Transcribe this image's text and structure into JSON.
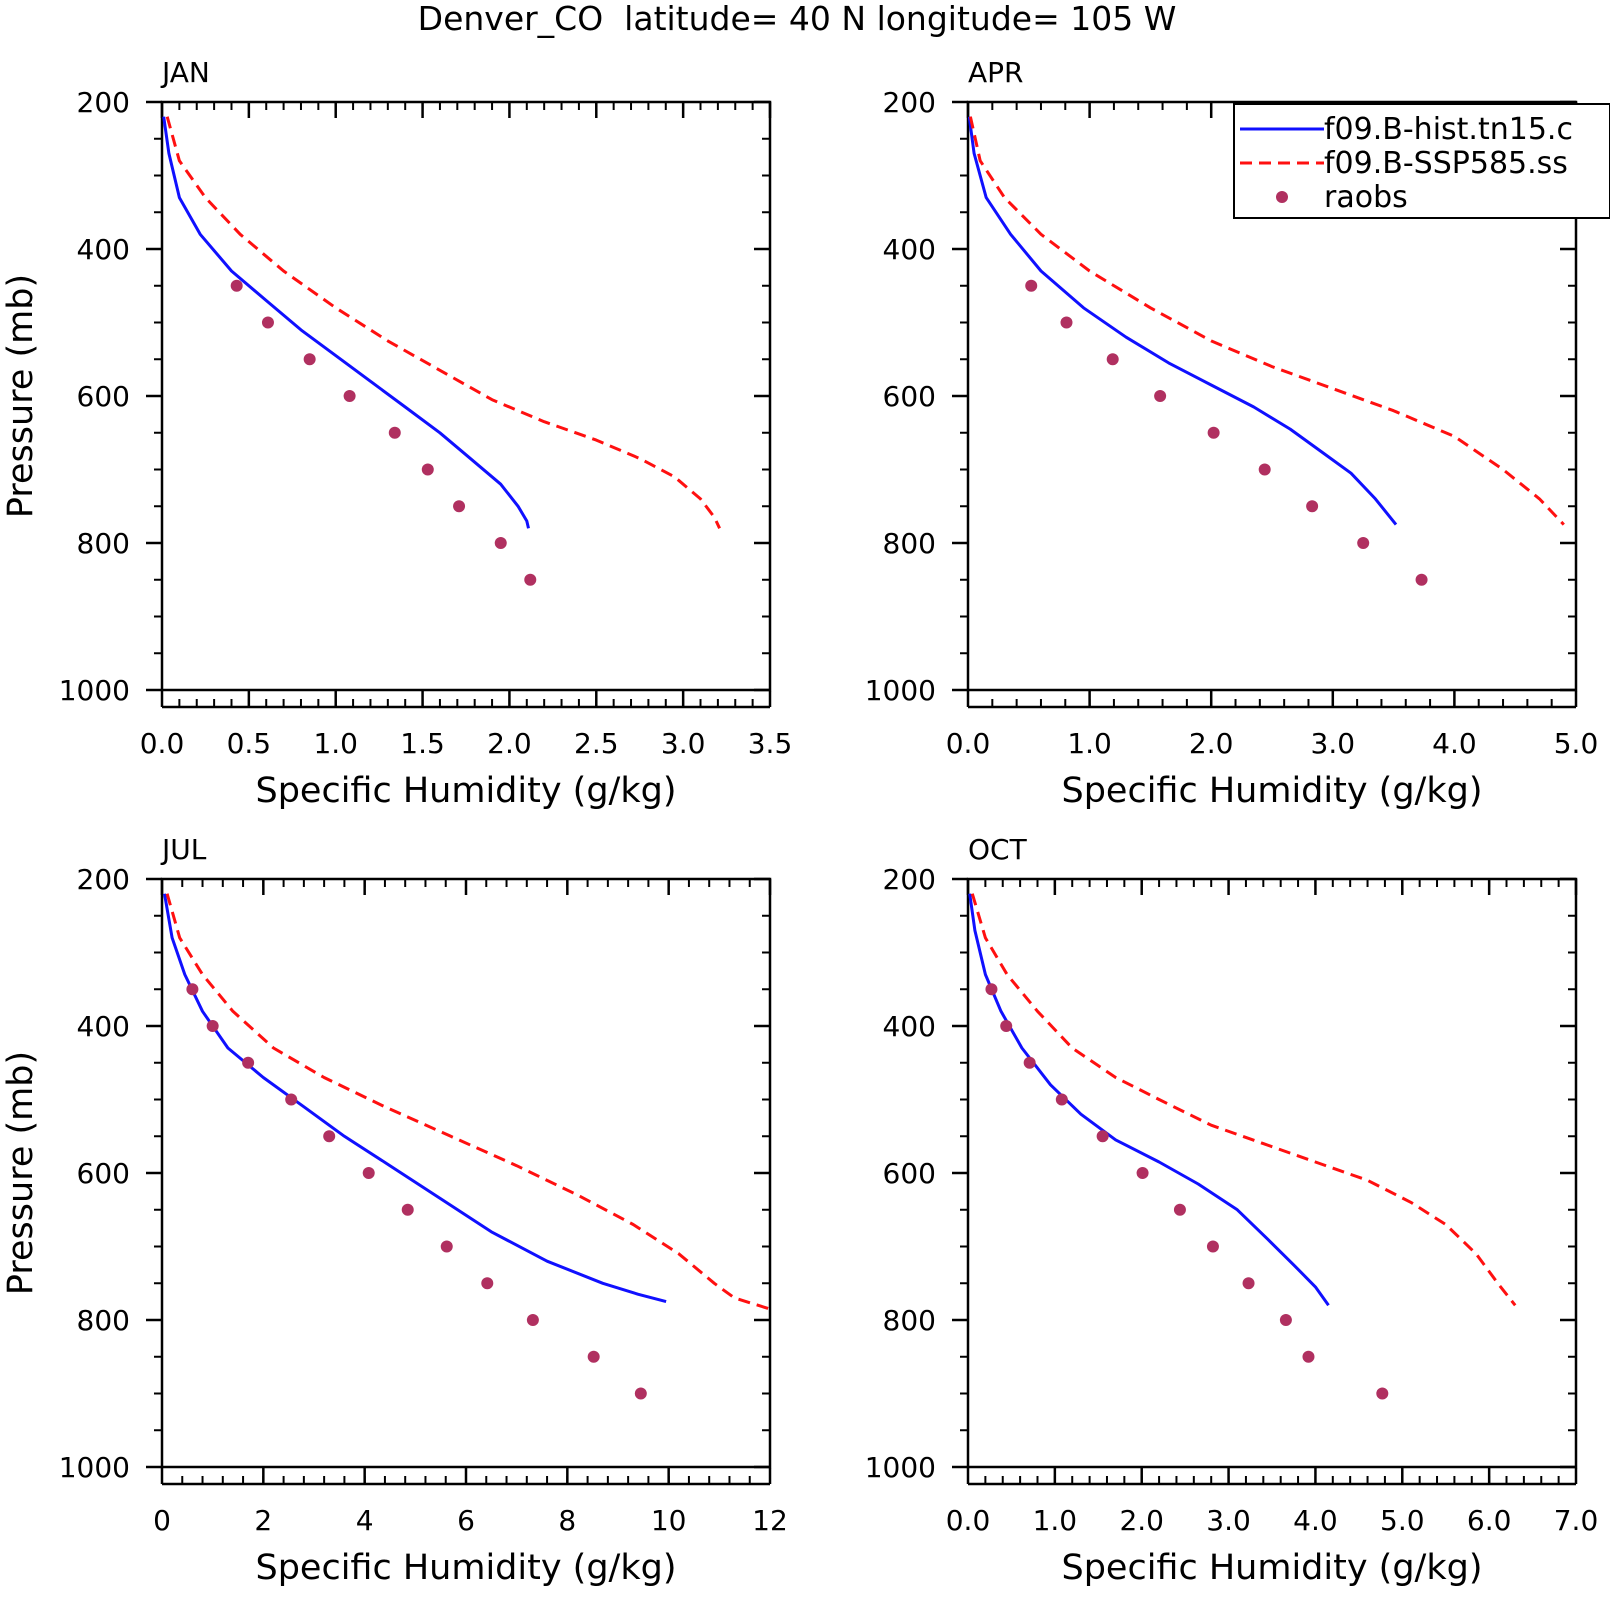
{
  "figure_title": "Denver_CO  latitude= 40 N longitude= 105 W",
  "legend": {
    "entries": [
      {
        "label": "f09.B-hist.tn15.c",
        "color": "#1010ff",
        "style": "solid"
      },
      {
        "label": "f09.B-SSP585.ss",
        "color": "#ff1010",
        "style": "dashed"
      },
      {
        "label": "raobs",
        "color": "#b03060",
        "style": "dot"
      }
    ]
  },
  "chart_data": [
    {
      "type": "line",
      "title": "JAN",
      "xlabel": "Specific Humidity (g/kg)",
      "ylabel": "Pressure (mb)",
      "xlim": [
        0,
        3.5
      ],
      "ylim": [
        200,
        1000
      ],
      "y_inverted": true,
      "xticks": [
        0,
        0.5,
        1,
        1.5,
        2,
        2.5,
        3,
        3.5
      ],
      "xtick_labels": [
        "0.0",
        "0.5",
        "1.0",
        "1.5",
        "2.0",
        "2.5",
        "3.0",
        "3.5"
      ],
      "xminor": 0.1,
      "yticks": [
        200,
        400,
        600,
        800,
        1000
      ],
      "yminor": 50,
      "series": [
        {
          "name": "f09.B-hist.tn15.c",
          "x": [
            0.01,
            0.04,
            0.1,
            0.22,
            0.4,
            0.6,
            0.8,
            1.0,
            1.2,
            1.4,
            1.6,
            1.75,
            1.95,
            2.05,
            2.1,
            2.11
          ],
          "y": [
            220,
            270,
            330,
            380,
            430,
            470,
            510,
            545,
            580,
            615,
            650,
            680,
            720,
            750,
            770,
            780
          ]
        },
        {
          "name": "f09.B-SSP585.ss",
          "x": [
            0.03,
            0.1,
            0.25,
            0.45,
            0.7,
            1.0,
            1.3,
            1.6,
            1.9,
            2.2,
            2.5,
            2.75,
            2.95,
            3.1,
            3.18,
            3.21
          ],
          "y": [
            220,
            280,
            330,
            380,
            430,
            480,
            525,
            565,
            605,
            635,
            660,
            685,
            710,
            740,
            765,
            780
          ]
        },
        {
          "name": "raobs",
          "x": [
            0.43,
            0.61,
            0.85,
            1.08,
            1.34,
            1.53,
            1.71,
            1.95,
            2.12
          ],
          "y": [
            450,
            500,
            550,
            600,
            650,
            700,
            750,
            800,
            850
          ]
        }
      ]
    },
    {
      "type": "line",
      "title": "APR",
      "xlabel": "Specific Humidity (g/kg)",
      "ylabel": "",
      "xlim": [
        0,
        5
      ],
      "ylim": [
        200,
        1000
      ],
      "y_inverted": true,
      "xticks": [
        0,
        1,
        2,
        3,
        4,
        5
      ],
      "xtick_labels": [
        "0.0",
        "1.0",
        "2.0",
        "3.0",
        "4.0",
        "5.0"
      ],
      "xminor": 0.2,
      "yticks": [
        200,
        400,
        600,
        800,
        1000
      ],
      "yminor": 50,
      "series": [
        {
          "name": "f09.B-hist.tn15.c",
          "x": [
            0.01,
            0.05,
            0.15,
            0.35,
            0.6,
            0.95,
            1.3,
            1.65,
            2.0,
            2.35,
            2.65,
            2.9,
            3.15,
            3.35,
            3.52
          ],
          "y": [
            220,
            270,
            330,
            380,
            430,
            480,
            520,
            555,
            585,
            615,
            645,
            675,
            705,
            740,
            775
          ]
        },
        {
          "name": "f09.B-SSP585.ss",
          "x": [
            0.02,
            0.1,
            0.3,
            0.6,
            1.0,
            1.5,
            2.0,
            2.5,
            3.0,
            3.5,
            4.0,
            4.4,
            4.7,
            4.9
          ],
          "y": [
            220,
            280,
            330,
            380,
            430,
            480,
            525,
            560,
            590,
            620,
            655,
            700,
            740,
            775
          ]
        },
        {
          "name": "raobs",
          "x": [
            0.52,
            0.81,
            1.19,
            1.58,
            2.02,
            2.44,
            2.83,
            3.25,
            3.73
          ],
          "y": [
            450,
            500,
            550,
            600,
            650,
            700,
            750,
            800,
            850
          ]
        }
      ]
    },
    {
      "type": "line",
      "title": "JUL",
      "xlabel": "Specific Humidity (g/kg)",
      "ylabel": "Pressure (mb)",
      "xlim": [
        0,
        12
      ],
      "ylim": [
        200,
        1000
      ],
      "y_inverted": true,
      "xticks": [
        0,
        2,
        4,
        6,
        8,
        10,
        12
      ],
      "xtick_labels": [
        "0",
        "2",
        "4",
        "6",
        "8",
        "10",
        "12"
      ],
      "xminor": 0.4,
      "yticks": [
        200,
        400,
        600,
        800,
        1000
      ],
      "yminor": 50,
      "series": [
        {
          "name": "f09.B-hist.tn15.c",
          "x": [
            0.05,
            0.2,
            0.45,
            0.8,
            1.3,
            2.0,
            2.8,
            3.6,
            4.5,
            5.5,
            6.5,
            7.6,
            8.7,
            9.4,
            9.95
          ],
          "y": [
            220,
            280,
            330,
            380,
            430,
            470,
            510,
            550,
            590,
            635,
            680,
            720,
            750,
            765,
            775
          ]
        },
        {
          "name": "f09.B-SSP585.ss",
          "x": [
            0.1,
            0.35,
            0.8,
            1.4,
            2.2,
            3.2,
            4.4,
            5.7,
            7.0,
            8.2,
            9.3,
            10.2,
            10.9,
            11.3,
            12.0
          ],
          "y": [
            220,
            280,
            330,
            380,
            430,
            470,
            510,
            550,
            590,
            630,
            670,
            710,
            750,
            770,
            785
          ]
        },
        {
          "name": "raobs",
          "x": [
            0.6,
            1.0,
            1.7,
            2.55,
            3.3,
            4.08,
            4.85,
            5.62,
            6.42,
            7.32,
            8.52,
            9.45
          ],
          "y": [
            350,
            400,
            450,
            500,
            550,
            600,
            650,
            700,
            750,
            800,
            850,
            900
          ]
        }
      ]
    },
    {
      "type": "line",
      "title": "OCT",
      "xlabel": "Specific Humidity (g/kg)",
      "ylabel": "",
      "xlim": [
        0,
        7
      ],
      "ylim": [
        200,
        1000
      ],
      "y_inverted": true,
      "xticks": [
        0,
        1,
        2,
        3,
        4,
        5,
        6,
        7
      ],
      "xtick_labels": [
        "0.0",
        "1.0",
        "2.0",
        "3.0",
        "4.0",
        "5.0",
        "6.0",
        "7.0"
      ],
      "xminor": 0.2,
      "yticks": [
        200,
        400,
        600,
        800,
        1000
      ],
      "yminor": 50,
      "series": [
        {
          "name": "f09.B-hist.tn15.c",
          "x": [
            0.02,
            0.08,
            0.2,
            0.38,
            0.62,
            0.95,
            1.3,
            1.7,
            2.2,
            2.65,
            3.1,
            3.45,
            3.75,
            4.0,
            4.15
          ],
          "y": [
            220,
            270,
            330,
            380,
            430,
            480,
            520,
            555,
            585,
            615,
            650,
            690,
            725,
            755,
            780
          ]
        },
        {
          "name": "f09.B-SSP585.ss",
          "x": [
            0.05,
            0.2,
            0.45,
            0.8,
            1.2,
            1.7,
            2.2,
            2.8,
            3.4,
            4.0,
            4.6,
            5.1,
            5.5,
            5.85,
            6.1,
            6.3
          ],
          "y": [
            220,
            280,
            330,
            380,
            430,
            470,
            500,
            535,
            560,
            585,
            610,
            640,
            670,
            710,
            750,
            780
          ]
        },
        {
          "name": "raobs",
          "x": [
            0.27,
            0.44,
            0.71,
            1.08,
            1.55,
            2.01,
            2.44,
            2.82,
            3.23,
            3.66,
            3.92,
            4.77
          ],
          "y": [
            350,
            400,
            450,
            500,
            550,
            600,
            650,
            700,
            750,
            800,
            850,
            900
          ]
        }
      ]
    }
  ]
}
